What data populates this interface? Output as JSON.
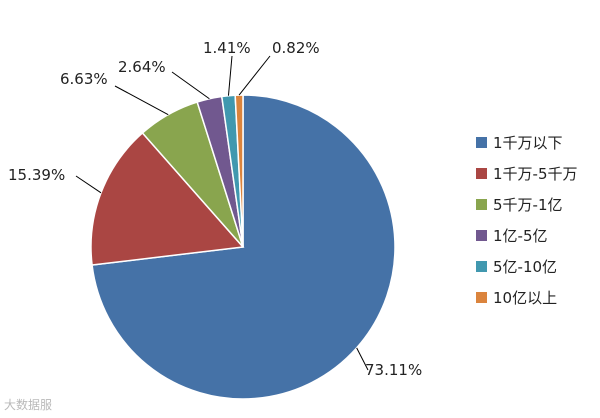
{
  "chart_data": {
    "type": "pie",
    "categories": [
      "1千万以下",
      "1千万-5千万",
      "5千万-1亿",
      "1亿-5亿",
      "5亿-10亿",
      "10亿以上"
    ],
    "values": [
      73.11,
      15.39,
      6.63,
      2.64,
      1.41,
      0.82
    ],
    "labels": [
      "73.11%",
      "15.39%",
      "6.63%",
      "2.64%",
      "1.41%",
      "0.82%"
    ],
    "colors": [
      "#4572a7",
      "#aa4643",
      "#89a54e",
      "#71588f",
      "#4198af",
      "#db843d"
    ],
    "legend_position": "right",
    "start_angle": "12 o'clock",
    "direction": "clockwise"
  },
  "watermark": "大数据服"
}
